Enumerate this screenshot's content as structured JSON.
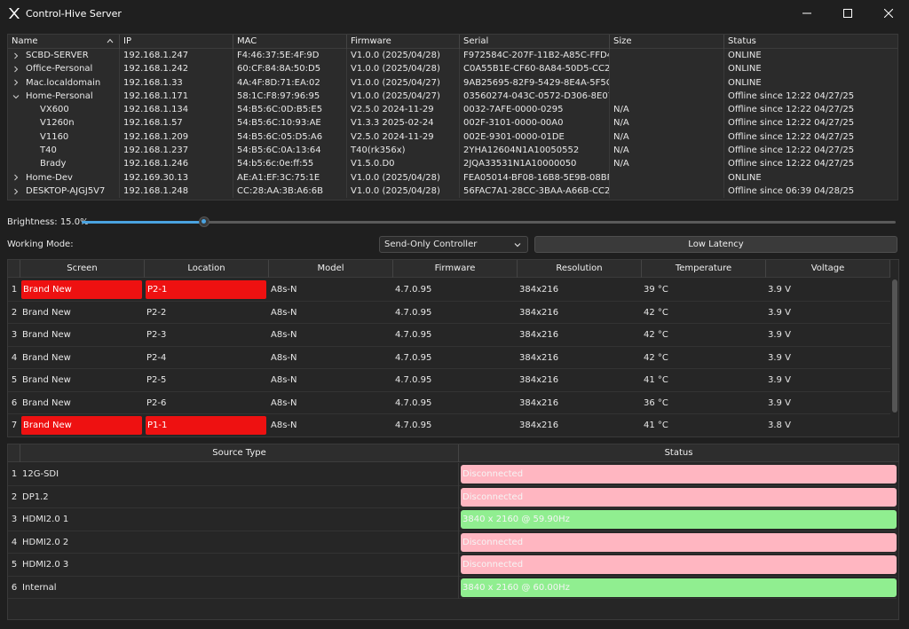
{
  "window": {
    "title": "Control-Hive Server"
  },
  "devices": {
    "columns": [
      "Name",
      "IP",
      "MAC",
      "Firmware",
      "Serial",
      "Size",
      "Status"
    ],
    "rows": [
      {
        "name": "SCBD-SERVER",
        "level": 0,
        "expanded": false,
        "ip": "192.168.1.247",
        "mac": "F4:46:37:5E:4F:9D",
        "firmware": "V1.0.0 (2025/04/28)",
        "serial": "F972584C-207F-11B2-A85C-FFD4F…",
        "size": "",
        "status": "ONLINE"
      },
      {
        "name": "Office-Personal",
        "level": 0,
        "expanded": false,
        "ip": "192.168.1.242",
        "mac": "60:CF:84:8A:50:D5",
        "firmware": "V1.0.0 (2025/04/28)",
        "serial": "C0A55B1E-CF60-8A84-50D5-CC28…",
        "size": "",
        "status": "ONLINE"
      },
      {
        "name": "Mac.localdomain",
        "level": 0,
        "expanded": false,
        "ip": "192.168.1.33",
        "mac": "4A:4F:8D:71:EA:02",
        "firmware": "V1.0.0 (2025/04/27)",
        "serial": "9AB25695-82F9-5429-8E4A-5F5C45…",
        "size": "",
        "status": "ONLINE"
      },
      {
        "name": "Home-Personal",
        "level": 0,
        "expanded": true,
        "ip": "192.168.1.171",
        "mac": "58:1C:F8:97:96:95",
        "firmware": "V1.0.0 (2025/04/27)",
        "serial": "03560274-043C-0572-D306-8E0700…",
        "size": "",
        "status": "Offline since 12:22 04/27/25"
      },
      {
        "name": "VX600",
        "level": 1,
        "ip": "192.168.1.134",
        "mac": "54:B5:6C:0D:B5:E5",
        "firmware": "V2.5.0 2024-11-29",
        "serial": "0032-7AFE-0000-0295",
        "size": "N/A",
        "status": "Offline since 12:22 04/27/25"
      },
      {
        "name": "V1260n",
        "level": 1,
        "ip": "192.168.1.57",
        "mac": "54:B5:6C:10:93:AE",
        "firmware": "V1.3.3 2025-02-24",
        "serial": "002F-3101-0000-00A0",
        "size": "N/A",
        "status": "Offline since 12:22 04/27/25"
      },
      {
        "name": "V1160",
        "level": 1,
        "ip": "192.168.1.209",
        "mac": "54:B5:6C:05:D5:A6",
        "firmware": "V2.5.0 2024-11-29",
        "serial": "002E-9301-0000-01DE",
        "size": "N/A",
        "status": "Offline since 12:22 04/27/25"
      },
      {
        "name": "T40",
        "level": 1,
        "ip": "192.168.1.237",
        "mac": "54:B5:6C:0A:13:64",
        "firmware": "T40(rk356x)",
        "serial": "2YHA12604N1A10050552",
        "size": "N/A",
        "status": "Offline since 12:22 04/27/25"
      },
      {
        "name": "Brady",
        "level": 1,
        "ip": "192.168.1.246",
        "mac": "54:b5:6c:0e:ff:55",
        "firmware": "V1.5.0.D0",
        "serial": "2JQA33531N1A10000050",
        "size": "N/A",
        "status": "Offline since 12:22 04/27/25"
      },
      {
        "name": "Home-Dev",
        "level": 0,
        "expanded": false,
        "ip": "192.169.30.13",
        "mac": "AE:A1:EF:3C:75:1E",
        "firmware": "V1.0.0 (2025/04/28)",
        "serial": "FEA05014-BF08-16B8-5E9B-08BFB8…",
        "size": "",
        "status": "ONLINE"
      },
      {
        "name": "DESKTOP-AJGJ5V7",
        "level": 0,
        "expanded": false,
        "ip": "192.168.1.248",
        "mac": "CC:28:AA:3B:A6:6B",
        "firmware": "V1.0.0 (2025/04/28)",
        "serial": "56FAC7A1-28CC-3BAA-A66B-CC2…",
        "size": "",
        "status": "Offline since 06:39 04/28/25"
      }
    ]
  },
  "brightness": {
    "label": "Brightness: 15.0%",
    "value": 0.15
  },
  "working_mode": {
    "label": "Working Mode:",
    "selected": "Send-Only Controller",
    "latency_button": "Low Latency"
  },
  "screens": {
    "columns": [
      "Screen",
      "Location",
      "Model",
      "Firmware",
      "Resolution",
      "Temperature",
      "Voltage"
    ],
    "rows": [
      {
        "num": "1",
        "screen": "Brand New",
        "location": "P2-1",
        "model": "A8s-N",
        "firmware": "4.7.0.95",
        "resolution": "384x216",
        "temperature": "39 °C",
        "voltage": "3.9 V",
        "highlight": true
      },
      {
        "num": "2",
        "screen": "Brand New",
        "location": "P2-2",
        "model": "A8s-N",
        "firmware": "4.7.0.95",
        "resolution": "384x216",
        "temperature": "42 °C",
        "voltage": "3.9 V",
        "highlight": false
      },
      {
        "num": "3",
        "screen": "Brand New",
        "location": "P2-3",
        "model": "A8s-N",
        "firmware": "4.7.0.95",
        "resolution": "384x216",
        "temperature": "42 °C",
        "voltage": "3.9 V",
        "highlight": false
      },
      {
        "num": "4",
        "screen": "Brand New",
        "location": "P2-4",
        "model": "A8s-N",
        "firmware": "4.7.0.95",
        "resolution": "384x216",
        "temperature": "42 °C",
        "voltage": "3.9 V",
        "highlight": false
      },
      {
        "num": "5",
        "screen": "Brand New",
        "location": "P2-5",
        "model": "A8s-N",
        "firmware": "4.7.0.95",
        "resolution": "384x216",
        "temperature": "41 °C",
        "voltage": "3.9 V",
        "highlight": false
      },
      {
        "num": "6",
        "screen": "Brand New",
        "location": "P2-6",
        "model": "A8s-N",
        "firmware": "4.7.0.95",
        "resolution": "384x216",
        "temperature": "36 °C",
        "voltage": "3.9 V",
        "highlight": false
      },
      {
        "num": "7",
        "screen": "Brand New",
        "location": "P1-1",
        "model": "A8s-N",
        "firmware": "4.7.0.95",
        "resolution": "384x216",
        "temperature": "41 °C",
        "voltage": "3.8 V",
        "highlight": true
      }
    ]
  },
  "sources": {
    "columns": [
      "Source Type",
      "Status"
    ],
    "rows": [
      {
        "num": "1",
        "type": "12G-SDI",
        "status": "Disconnected",
        "connected": false
      },
      {
        "num": "2",
        "type": "DP1.2",
        "status": "Disconnected",
        "connected": false
      },
      {
        "num": "3",
        "type": "HDMI2.0 1",
        "status": "3840 x 2160 @ 59.90Hz",
        "connected": true
      },
      {
        "num": "4",
        "type": "HDMI2.0 2",
        "status": "Disconnected",
        "connected": false
      },
      {
        "num": "5",
        "type": "HDMI2.0 3",
        "status": "Disconnected",
        "connected": false
      },
      {
        "num": "6",
        "type": "Internal",
        "status": "3840 x 2160 @ 60.00Hz",
        "connected": true
      }
    ]
  },
  "colors": {
    "highlight_red": "#ee1111",
    "status_disconnected": "#ffb6c1",
    "status_connected": "#90ee90",
    "accent": "#4aa3e0"
  },
  "icons": [
    "app-logo-icon",
    "minimize-icon",
    "maximize-icon",
    "close-icon",
    "sort-ascending-icon",
    "chevron-right-icon",
    "chevron-down-icon"
  ]
}
